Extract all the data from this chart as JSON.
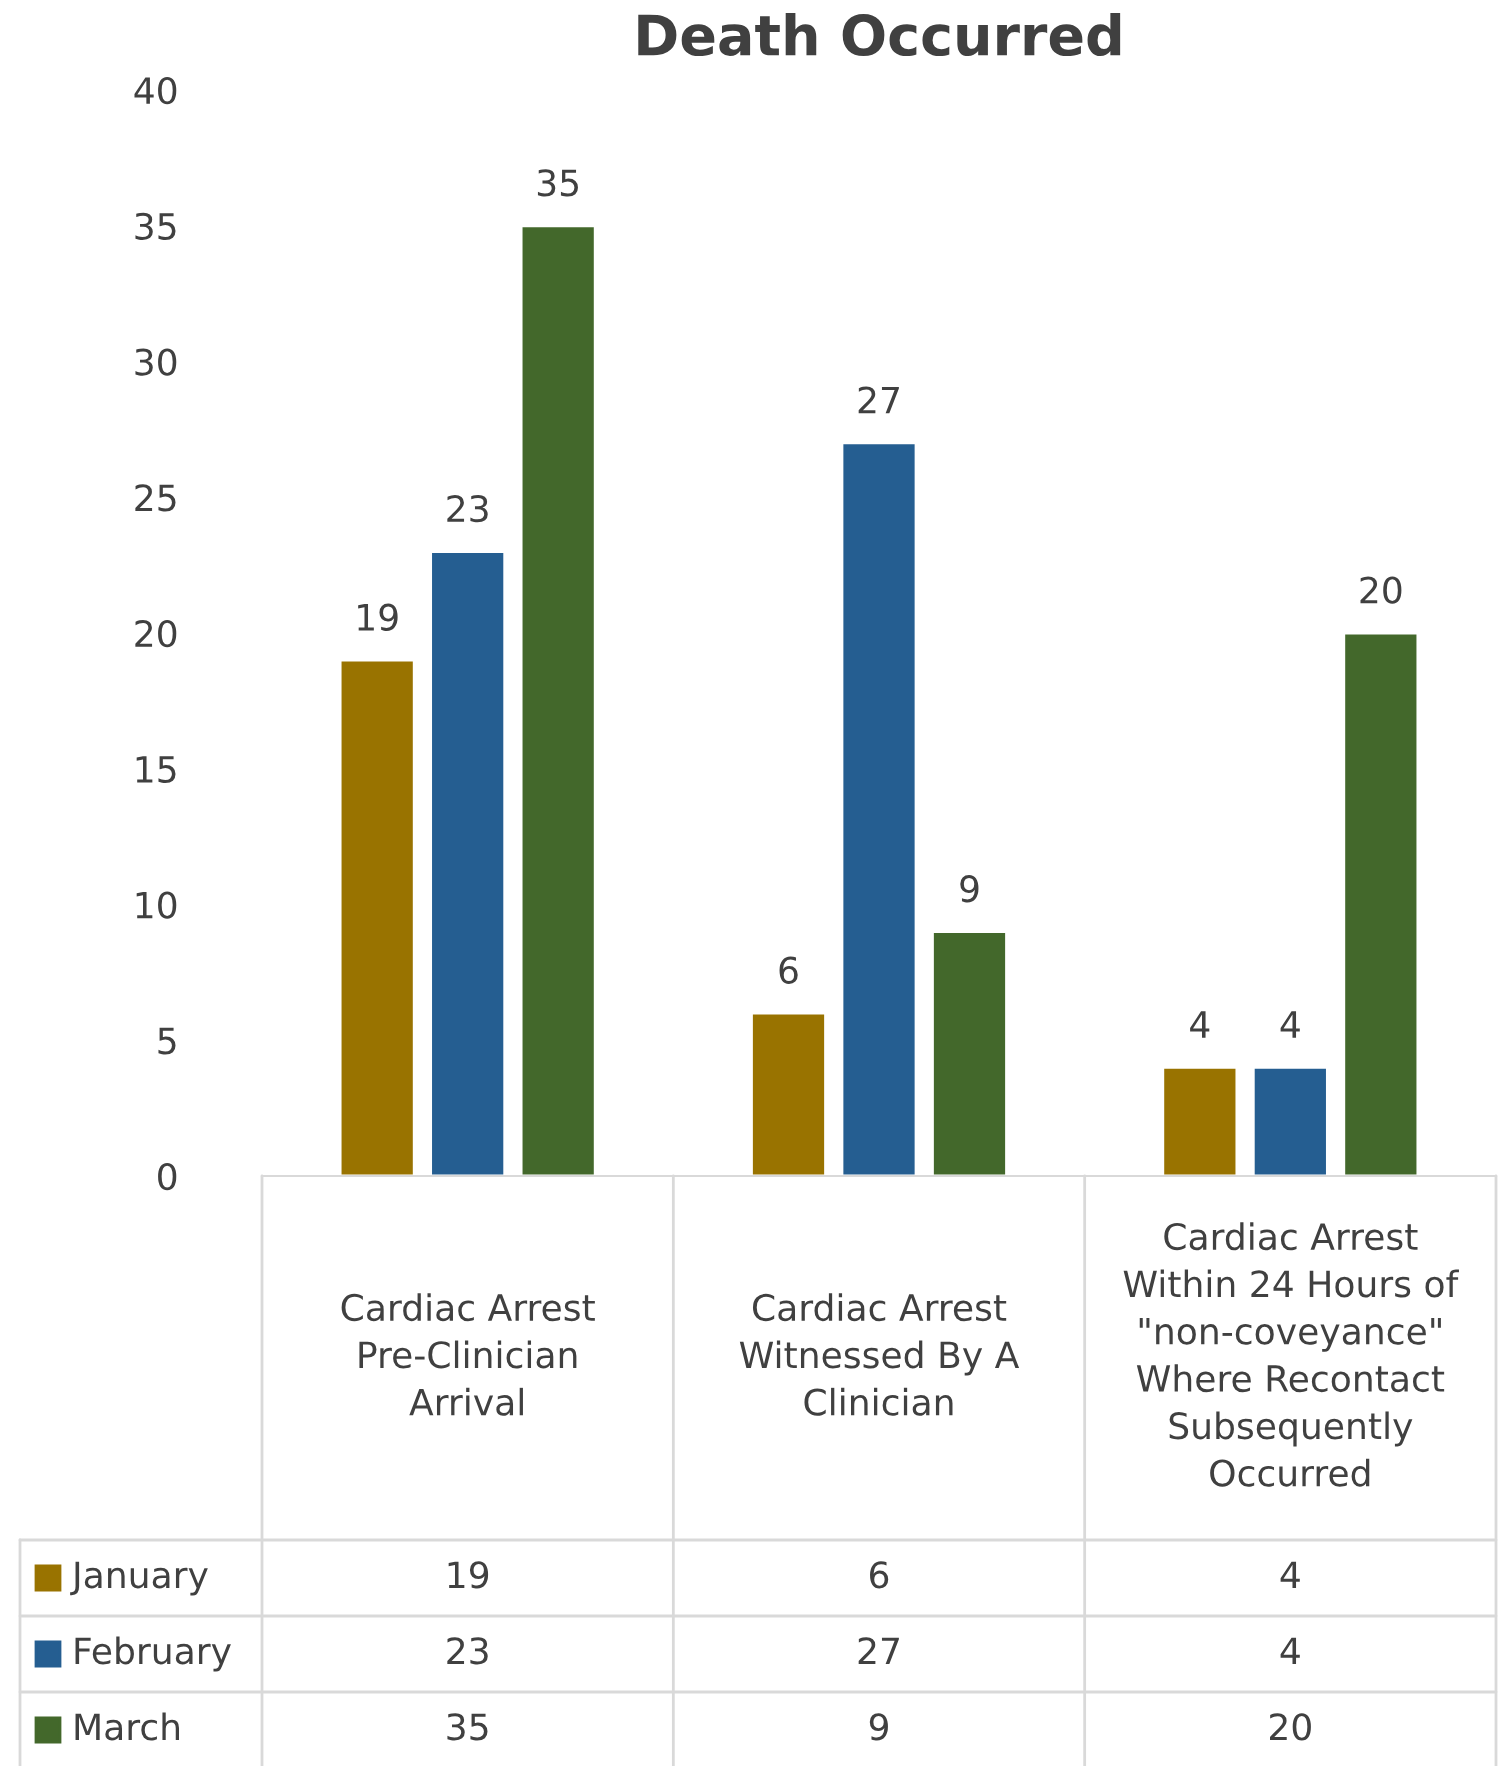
{
  "chart_data": {
    "type": "bar",
    "title": "Death Occurred",
    "categories": [
      "Cardiac Arrest Pre-Clinician Arrival",
      "Cardiac Arrest Witnessed By A Clinician",
      "Cardiac Arrest Within 24 Hours of \"non-coveyance\" Where Recontact Subsequently Occurred"
    ],
    "series": [
      {
        "name": "January",
        "color": "#997300",
        "values": [
          19,
          6,
          4
        ],
        "value_labels": [
          "19",
          "6",
          "4"
        ]
      },
      {
        "name": "February",
        "color": "#255e91",
        "values": [
          23,
          27,
          4
        ],
        "value_labels": [
          "23",
          "27",
          "4"
        ]
      },
      {
        "name": "March",
        "color": "#43682b",
        "values": [
          35,
          9,
          20
        ],
        "value_labels": [
          "35",
          "9",
          "20"
        ]
      }
    ],
    "ylim": [
      0,
      40
    ],
    "yticks": [
      0,
      5,
      10,
      15,
      20,
      25,
      30,
      35,
      40
    ],
    "annotations": [
      "19",
      "6",
      "4",
      "23",
      "27",
      "4",
      "35",
      "9",
      "20"
    ],
    "grid": false,
    "legend": "bottom"
  }
}
